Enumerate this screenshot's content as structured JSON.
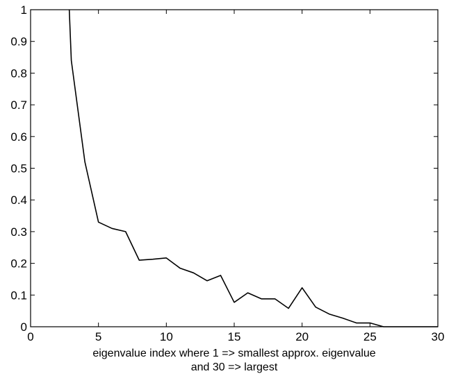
{
  "chart_data": {
    "type": "line",
    "title": "",
    "xlabel_lines": [
      "eigenvalue index where 1 => smallest approx. eigenvalue",
      "and 30 => largest"
    ],
    "ylabel": "",
    "xlim": [
      0,
      30
    ],
    "ylim": [
      0,
      1
    ],
    "xticks": [
      0,
      5,
      10,
      15,
      20,
      25,
      30
    ],
    "yticks": [
      0,
      0.1,
      0.2,
      0.3,
      0.4,
      0.5,
      0.6,
      0.7,
      0.8,
      0.9,
      1
    ],
    "ytick_labels": [
      "0",
      "0.1",
      "0.2",
      "0.3",
      "0.4",
      "0.5",
      "0.6",
      "0.7",
      "0.8",
      "0.9",
      "1"
    ],
    "grid": false,
    "box": true,
    "series": [
      {
        "color": "#000000",
        "x": [
          2.85,
          3,
          4,
          5,
          6,
          7,
          8,
          9,
          10,
          11,
          12,
          13,
          14,
          15,
          16,
          17,
          18,
          19,
          20,
          21,
          22,
          23,
          24,
          25,
          26,
          27,
          28,
          29,
          30
        ],
        "y": [
          1.0,
          0.84,
          0.52,
          0.33,
          0.31,
          0.3,
          0.21,
          0.213,
          0.217,
          0.185,
          0.17,
          0.145,
          0.162,
          0.077,
          0.107,
          0.088,
          0.088,
          0.058,
          0.123,
          0.062,
          0.04,
          0.027,
          0.012,
          0.012,
          0.0,
          0.0,
          0.0,
          0.0,
          0.0
        ]
      }
    ]
  }
}
